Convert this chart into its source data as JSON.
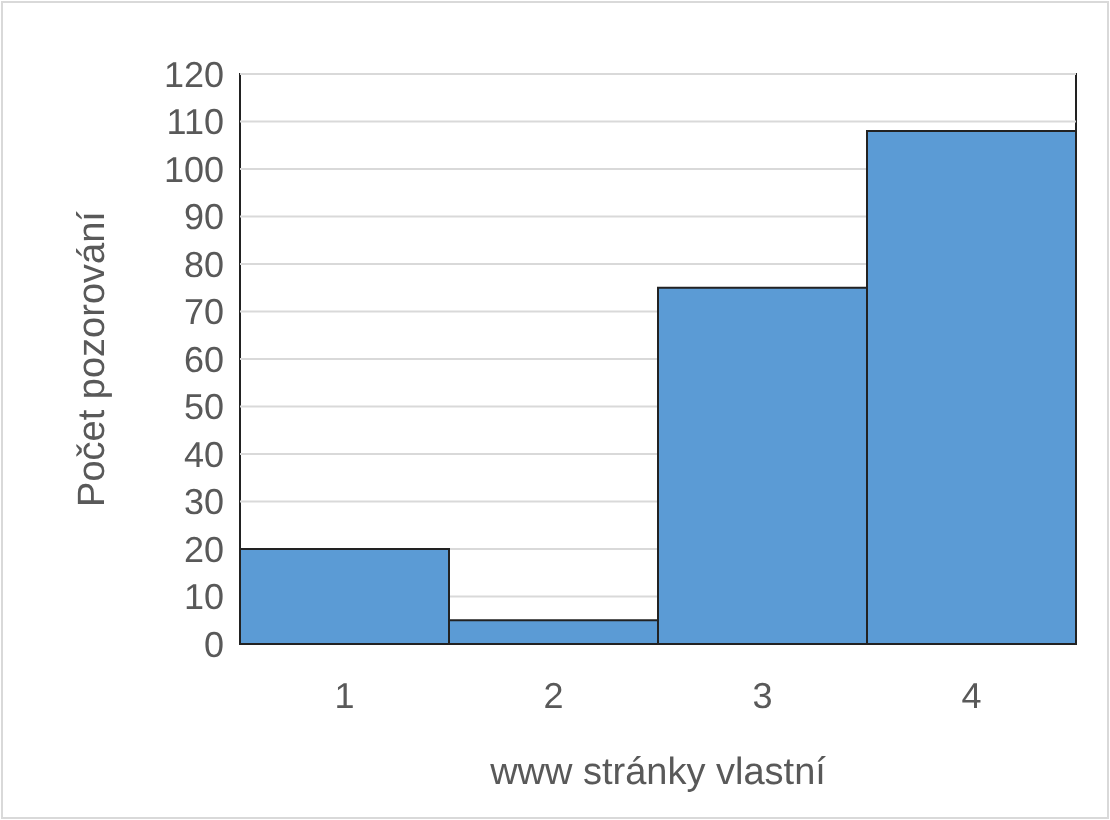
{
  "chart_data": {
    "type": "bar",
    "xlabel": "www stránky vlastní",
    "ylabel": "Počet pozorování",
    "categories": [
      "1",
      "2",
      "3",
      "4"
    ],
    "values": [
      20,
      5,
      75,
      108
    ],
    "color": "#5b9bd5",
    "ylim": [
      0,
      120
    ],
    "yticks": [
      0,
      10,
      20,
      30,
      40,
      50,
      60,
      70,
      80,
      90,
      100,
      110,
      120
    ],
    "grid": "y"
  }
}
